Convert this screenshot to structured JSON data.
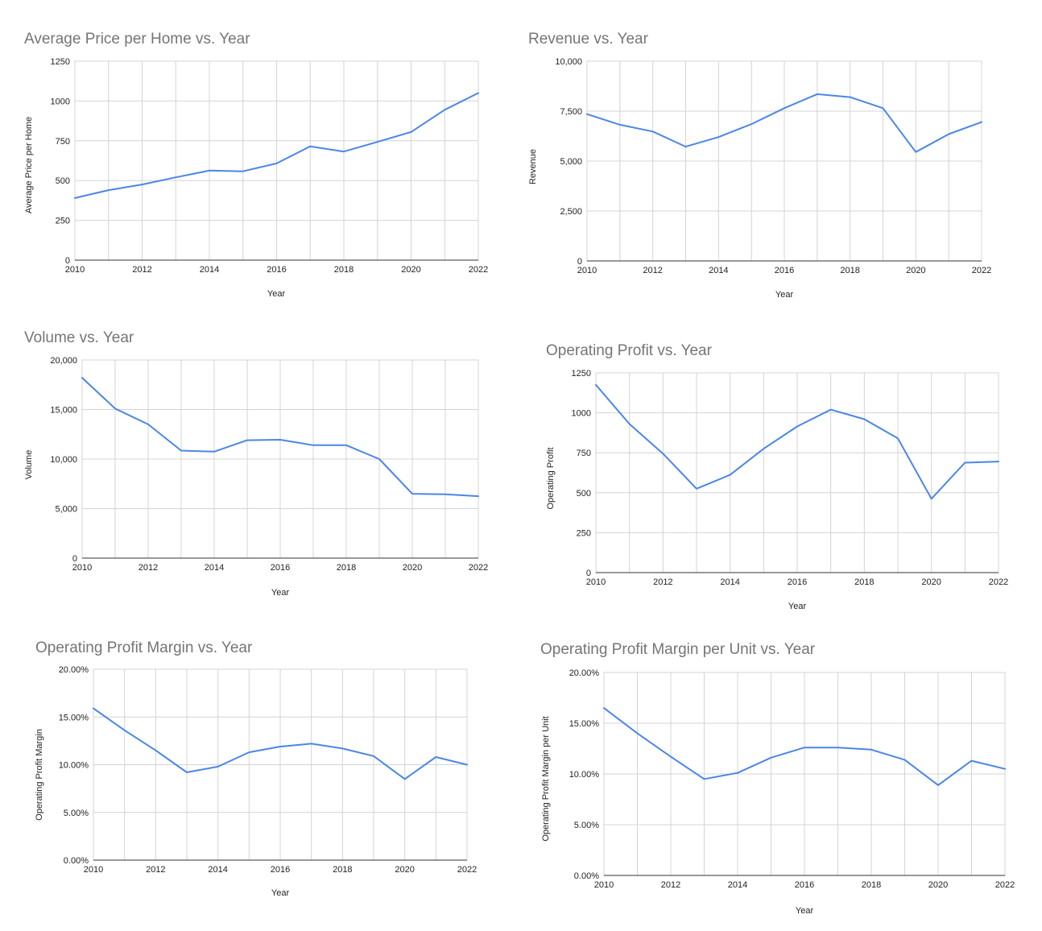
{
  "colors": {
    "series": "#4a86e8",
    "grid": "#d4d4d4",
    "title": "#757575",
    "text": "#222222"
  },
  "chart_data": [
    {
      "type": "line",
      "title": "Average Price per Home vs. Year",
      "xlabel": "Year",
      "ylabel": "Average Price per Home",
      "xlim": [
        2010,
        2022
      ],
      "ylim": [
        0,
        1250
      ],
      "xticks": [
        "2010",
        "2012",
        "2014",
        "2016",
        "2018",
        "2020",
        "2022"
      ],
      "yticks": [
        "0",
        "250",
        "500",
        "750",
        "1000",
        "1250"
      ],
      "grid": true,
      "series": [
        {
          "x": [
            2010,
            2011,
            2012,
            2013,
            2014,
            2015,
            2016,
            2017,
            2018,
            2019,
            2020,
            2021,
            2022
          ],
          "values": [
            390,
            440,
            475,
            520,
            563,
            558,
            608,
            715,
            682,
            743,
            805,
            945,
            1050
          ]
        }
      ]
    },
    {
      "type": "line",
      "title": "Revenue vs. Year",
      "xlabel": "Year",
      "ylabel": "Revenue",
      "xlim": [
        2010,
        2022
      ],
      "ylim": [
        0,
        10000
      ],
      "xticks": [
        "2010",
        "2012",
        "2014",
        "2016",
        "2018",
        "2020",
        "2022"
      ],
      "yticks": [
        "0",
        "2,500",
        "5,000",
        "7,500",
        "10,000"
      ],
      "grid": true,
      "series": [
        {
          "x": [
            2010,
            2011,
            2012,
            2013,
            2014,
            2015,
            2016,
            2017,
            2018,
            2019,
            2020,
            2021,
            2022
          ],
          "values": [
            7350,
            6820,
            6480,
            5720,
            6200,
            6850,
            7650,
            8350,
            8200,
            7650,
            5450,
            6350,
            6950
          ]
        }
      ]
    },
    {
      "type": "line",
      "title": "Volume vs. Year",
      "xlabel": "Year",
      "ylabel": "Volume",
      "xlim": [
        2010,
        2022
      ],
      "ylim": [
        0,
        20000
      ],
      "xticks": [
        "2010",
        "2012",
        "2014",
        "2016",
        "2018",
        "2020",
        "2022"
      ],
      "yticks": [
        "0",
        "5,000",
        "10,000",
        "15,000",
        "20,000"
      ],
      "grid": true,
      "series": [
        {
          "x": [
            2010,
            2011,
            2012,
            2013,
            2014,
            2015,
            2016,
            2017,
            2018,
            2019,
            2020,
            2021,
            2022
          ],
          "values": [
            18200,
            15100,
            13500,
            10850,
            10750,
            11900,
            11950,
            11400,
            11400,
            10000,
            6500,
            6450,
            6250
          ]
        }
      ]
    },
    {
      "type": "line",
      "title": "Operating Profit vs. Year",
      "xlabel": "Year",
      "ylabel": "Operating Profit",
      "xlim": [
        2010,
        2022
      ],
      "ylim": [
        0,
        1250
      ],
      "xticks": [
        "2010",
        "2012",
        "2014",
        "2016",
        "2018",
        "2020",
        "2022"
      ],
      "yticks": [
        "0",
        "250",
        "500",
        "750",
        "1000",
        "1250"
      ],
      "grid": true,
      "series": [
        {
          "x": [
            2010,
            2011,
            2012,
            2013,
            2014,
            2015,
            2016,
            2017,
            2018,
            2019,
            2020,
            2021,
            2022
          ],
          "values": [
            1175,
            930,
            745,
            525,
            612,
            775,
            915,
            1020,
            960,
            840,
            462,
            688,
            695
          ]
        }
      ]
    },
    {
      "type": "line",
      "title": "Operating Profit Margin vs. Year",
      "xlabel": "Year",
      "ylabel": "Operating Profit Margin",
      "xlim": [
        2010,
        2022
      ],
      "ylim": [
        0,
        0.2
      ],
      "xticks": [
        "2010",
        "2012",
        "2014",
        "2016",
        "2018",
        "2020",
        "2022"
      ],
      "yticks": [
        "0.00%",
        "5.00%",
        "10.00%",
        "15.00%",
        "20.00%"
      ],
      "grid": true,
      "series": [
        {
          "x": [
            2010,
            2011,
            2012,
            2013,
            2014,
            2015,
            2016,
            2017,
            2018,
            2019,
            2020,
            2021,
            2022
          ],
          "values": [
            0.159,
            0.136,
            0.115,
            0.092,
            0.098,
            0.113,
            0.119,
            0.122,
            0.117,
            0.109,
            0.085,
            0.108,
            0.1
          ]
        }
      ]
    },
    {
      "type": "line",
      "title": "Operating Profit Margin per Unit vs. Year",
      "xlabel": "Year",
      "ylabel": "Operating Profit Margin per Unit",
      "xlim": [
        2010,
        2022
      ],
      "ylim": [
        0,
        0.2
      ],
      "xticks": [
        "2010",
        "2012",
        "2014",
        "2016",
        "2018",
        "2020",
        "2022"
      ],
      "yticks": [
        "0.00%",
        "5.00%",
        "10.00%",
        "15.00%",
        "20.00%"
      ],
      "grid": true,
      "series": [
        {
          "x": [
            2010,
            2011,
            2012,
            2013,
            2014,
            2015,
            2016,
            2017,
            2018,
            2019,
            2020,
            2021,
            2022
          ],
          "values": [
            0.165,
            0.14,
            0.117,
            0.095,
            0.101,
            0.116,
            0.126,
            0.126,
            0.124,
            0.114,
            0.089,
            0.113,
            0.105
          ]
        }
      ]
    }
  ]
}
